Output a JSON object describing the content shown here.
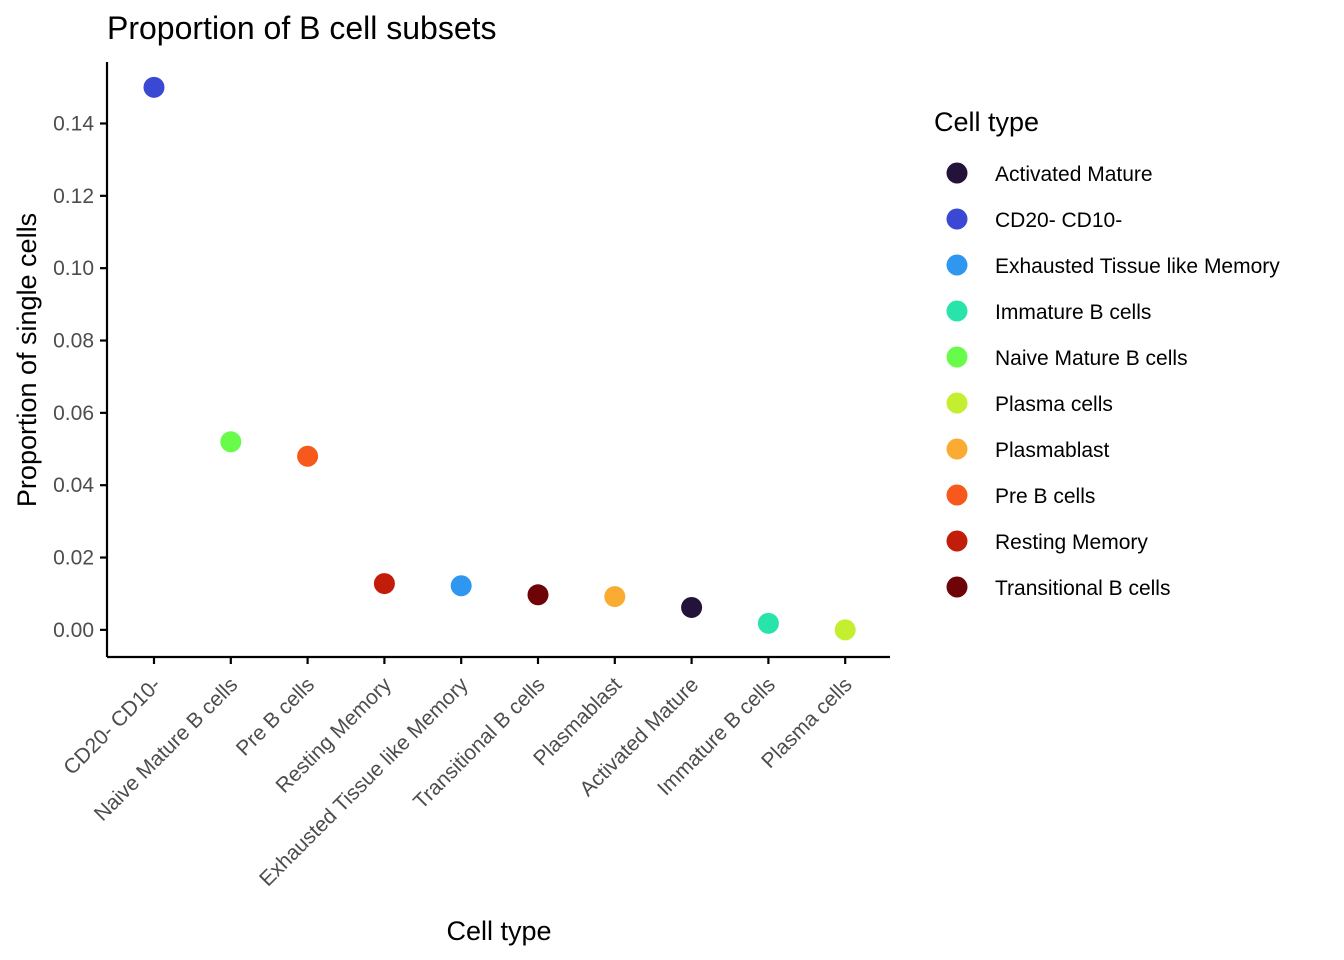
{
  "chart_data": {
    "type": "scatter",
    "title": "Proportion of B cell subsets",
    "xlabel": "Cell type",
    "ylabel": "Proportion of single cells",
    "ylim": [
      -0.0075,
      0.157
    ],
    "yticks": [
      "0.00",
      "0.02",
      "0.04",
      "0.06",
      "0.08",
      "0.10",
      "0.12",
      "0.14"
    ],
    "grid": false,
    "categories": [
      "CD20- CD10-",
      "Naive Mature B cells",
      "Pre B cells",
      "Resting Memory",
      "Exhausted Tissue like Memory",
      "Transitional B cells",
      "Plasmablast",
      "Activated Mature",
      "Immature B cells",
      "Plasma cells"
    ],
    "values": [
      0.15,
      0.052,
      0.048,
      0.0128,
      0.0122,
      0.0097,
      0.0092,
      0.0062,
      0.0018,
      0.0
    ],
    "colors": [
      "#3A48D3",
      "#68FB4A",
      "#F6591B",
      "#C21D0A",
      "#2F97F0",
      "#6E0407",
      "#F9AB32",
      "#23123A",
      "#28E4AA",
      "#C3EF30"
    ],
    "legend": {
      "title": "Cell type",
      "position": "right",
      "items": [
        {
          "label": "Activated Mature",
          "color": "#23123A"
        },
        {
          "label": "CD20- CD10-",
          "color": "#3A48D3"
        },
        {
          "label": "Exhausted Tissue like Memory",
          "color": "#2F97F0"
        },
        {
          "label": "Immature B cells",
          "color": "#28E4AA"
        },
        {
          "label": "Naive Mature B cells",
          "color": "#68FB4A"
        },
        {
          "label": "Plasma cells",
          "color": "#C3EF30"
        },
        {
          "label": "Plasmablast",
          "color": "#F9AB32"
        },
        {
          "label": "Pre B cells",
          "color": "#F6591B"
        },
        {
          "label": "Resting Memory",
          "color": "#C21D0A"
        },
        {
          "label": "Transitional B cells",
          "color": "#6E0407"
        }
      ]
    }
  }
}
